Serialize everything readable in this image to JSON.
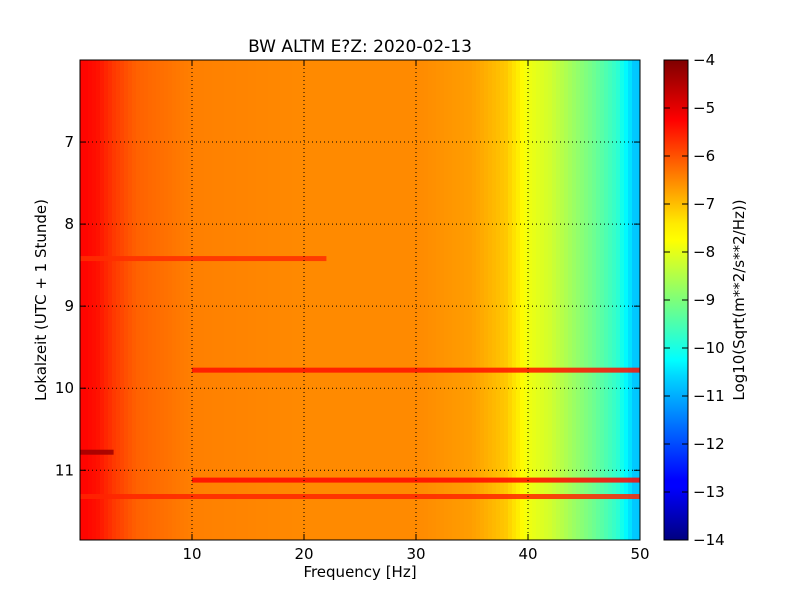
{
  "chart_data": {
    "type": "heatmap",
    "title": "BW ALTM E?Z: 2020-02-13",
    "xlabel": "Frequency [Hz]",
    "ylabel": "Lokalzeit (UTC + 1 Stunde)",
    "xlim": [
      0,
      50
    ],
    "ylim": [
      6.0,
      11.85
    ],
    "y_inverted": true,
    "x_ticks": [
      10,
      20,
      30,
      40,
      50
    ],
    "y_ticks": [
      7,
      8,
      9,
      10,
      11
    ],
    "grid": true,
    "colormap": "jet",
    "colorbar": {
      "label": "Log10(Sqrt(m**2/s**2/Hz))",
      "range": [
        -14,
        -4
      ],
      "ticks": [
        -4,
        -5,
        -6,
        -7,
        -8,
        -9,
        -10,
        -11,
        -12,
        -13,
        -14
      ]
    },
    "spectrum_profile": [
      {
        "freq": 0.5,
        "value": -5.3
      },
      {
        "freq": 1.5,
        "value": -5.4
      },
      {
        "freq": 3,
        "value": -5.8
      },
      {
        "freq": 5,
        "value": -6.2
      },
      {
        "freq": 10,
        "value": -6.5
      },
      {
        "freq": 20,
        "value": -6.6
      },
      {
        "freq": 30,
        "value": -6.6
      },
      {
        "freq": 35,
        "value": -6.8
      },
      {
        "freq": 38,
        "value": -7.2
      },
      {
        "freq": 40,
        "value": -7.9
      },
      {
        "freq": 42,
        "value": -8.2
      },
      {
        "freq": 44,
        "value": -8.7
      },
      {
        "freq": 46,
        "value": -9.2
      },
      {
        "freq": 48,
        "value": -9.8
      },
      {
        "freq": 49.5,
        "value": -10.8
      }
    ],
    "bands": [
      {
        "time": 9.78,
        "f_start": 10,
        "f_end": 50,
        "value": -5.4
      },
      {
        "time": 11.12,
        "f_start": 10,
        "f_end": 50,
        "value": -5.3
      },
      {
        "time": 11.32,
        "f_start": 0,
        "f_end": 50,
        "value": -5.6
      },
      {
        "time": 10.78,
        "f_start": 0,
        "f_end": 3,
        "value": -4.3
      },
      {
        "time": 8.42,
        "f_start": 0,
        "f_end": 22,
        "value": -5.7
      }
    ]
  }
}
